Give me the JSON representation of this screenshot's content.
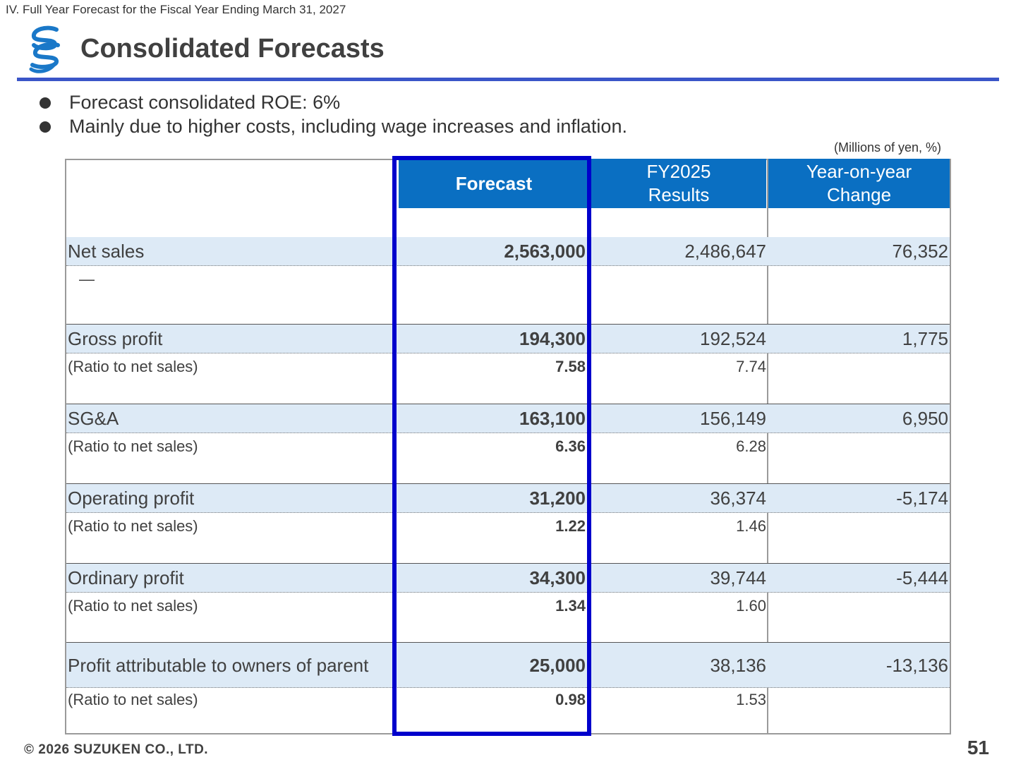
{
  "section_label": "IV. Full Year Forecast for the Fiscal Year Ending March 31, 2027",
  "title": "Consolidated Forecasts",
  "bullets": [
    "Forecast consolidated ROE: 6%",
    "Mainly due to higher costs, including wage increases and inflation."
  ],
  "units": "(Millions of yen, %)",
  "table": {
    "headers": {
      "forecast": "Forecast",
      "fy2025_line1": "FY2025",
      "fy2025_line2": "Results",
      "yoy_line1": "Year-on-year",
      "yoy_line2": "Change"
    },
    "rows": [
      {
        "label": "Net sales",
        "forecast": "2,563,000",
        "fy2025": "2,486,647",
        "yoy": "76,352",
        "sub": {
          "label": "—",
          "forecast": "",
          "fy2025": ""
        }
      },
      {
        "label": "Gross profit",
        "forecast": "194,300",
        "fy2025": "192,524",
        "yoy": "1,775",
        "sub": {
          "label": "(Ratio to net sales)",
          "forecast": "7.58",
          "fy2025": "7.74"
        }
      },
      {
        "label": "SG&A",
        "forecast": "163,100",
        "fy2025": "156,149",
        "yoy": "6,950",
        "sub": {
          "label": "(Ratio to net sales)",
          "forecast": "6.36",
          "fy2025": "6.28"
        }
      },
      {
        "label": "Operating profit",
        "forecast": "31,200",
        "fy2025": "36,374",
        "yoy": "-5,174",
        "sub": {
          "label": "(Ratio to net sales)",
          "forecast": "1.22",
          "fy2025": "1.46"
        }
      },
      {
        "label": "Ordinary profit",
        "forecast": "34,300",
        "fy2025": "39,744",
        "yoy": "-5,444",
        "sub": {
          "label": "(Ratio to net sales)",
          "forecast": "1.34",
          "fy2025": "1.60"
        }
      },
      {
        "label": "Profit attributable to owners of parent",
        "forecast": "25,000",
        "fy2025": "38,136",
        "yoy": "-13,136",
        "sub": {
          "label": "(Ratio to net sales)",
          "forecast": "0.98",
          "fy2025": "1.53"
        }
      }
    ]
  },
  "footer": "© 2026 SUZUKEN CO., LTD.",
  "page_number": "51",
  "colors": {
    "header_blue": "#0a6fc2",
    "highlight_border": "#0000cc",
    "title_rule": "#3a55c8",
    "row_tint": "#ddeaf6"
  }
}
